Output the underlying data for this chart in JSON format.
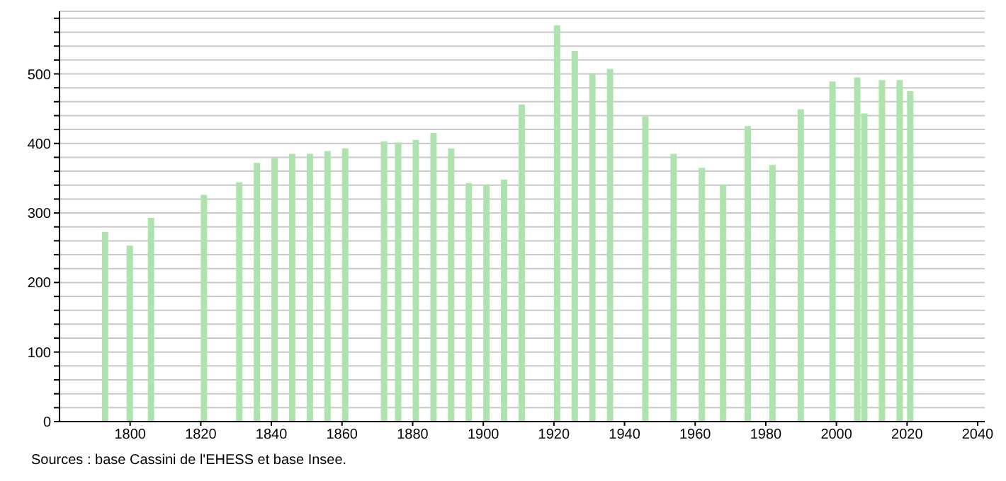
{
  "chart_data": {
    "type": "bar",
    "color": "#aee3ae",
    "x": [
      1793,
      1800,
      1806,
      1821,
      1831,
      1836,
      1841,
      1846,
      1851,
      1856,
      1861,
      1872,
      1876,
      1881,
      1886,
      1891,
      1896,
      1901,
      1906,
      1911,
      1921,
      1926,
      1931,
      1936,
      1946,
      1954,
      1962,
      1968,
      1975,
      1982,
      1990,
      1999,
      2006,
      2008,
      2013,
      2018,
      2021
    ],
    "values": [
      273,
      253,
      293,
      326,
      344,
      372,
      379,
      385,
      385,
      389,
      393,
      403,
      401,
      405,
      415,
      393,
      343,
      341,
      348,
      456,
      570,
      533,
      501,
      507,
      439,
      385,
      365,
      341,
      425,
      369,
      449,
      489,
      495,
      443,
      491,
      491,
      475
    ],
    "xlim": [
      1780,
      2042
    ],
    "xticks": [
      1800,
      1820,
      1840,
      1860,
      1880,
      1900,
      1920,
      1940,
      1960,
      1980,
      2000,
      2020,
      2040
    ],
    "ylim": [
      0,
      590
    ],
    "yticks": [
      0,
      {
        "value": 20,
        "label": null
      },
      {
        "value": 40,
        "label": null
      },
      {
        "value": 60,
        "label": null
      },
      {
        "value": 80,
        "label": null
      },
      100,
      {
        "value": 120,
        "label": null
      },
      {
        "value": 140,
        "label": null
      },
      {
        "value": 160,
        "label": null
      },
      {
        "value": 180,
        "label": null
      },
      200,
      {
        "value": 220,
        "label": null
      },
      {
        "value": 240,
        "label": null
      },
      {
        "value": 260,
        "label": null
      },
      {
        "value": 280,
        "label": null
      },
      300,
      {
        "value": 320,
        "label": null
      },
      {
        "value": 340,
        "label": null
      },
      {
        "value": 360,
        "label": null
      },
      {
        "value": 380,
        "label": null
      },
      400,
      {
        "value": 420,
        "label": null
      },
      {
        "value": 440,
        "label": null
      },
      {
        "value": 460,
        "label": null
      },
      {
        "value": 480,
        "label": null
      },
      500,
      {
        "value": 520,
        "label": null
      },
      {
        "value": 540,
        "label": null
      },
      {
        "value": 560,
        "label": null
      },
      {
        "value": 580,
        "label": null
      }
    ],
    "grid": "y",
    "annotations": [
      "Sources : base Cassini de l'EHESS et base Insee."
    ]
  }
}
